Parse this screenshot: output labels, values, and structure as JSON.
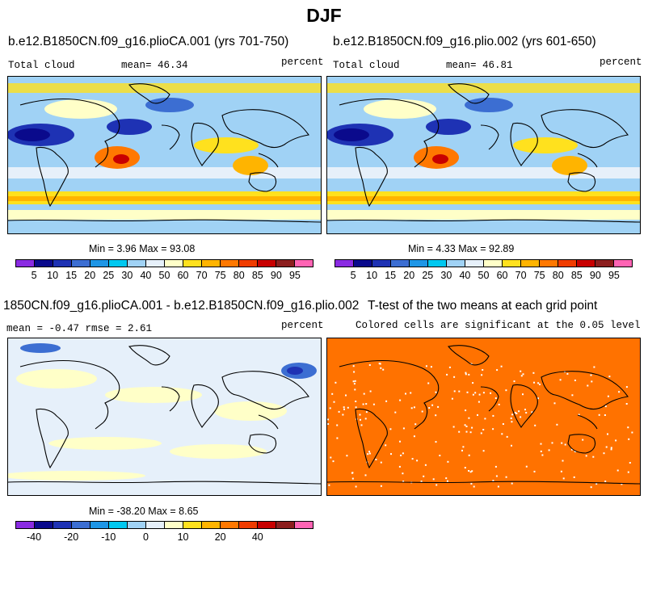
{
  "figure_title": "DJF",
  "panels": {
    "p1": {
      "title": "b.e12.B1850CN.f09_g16.plioCA.001 (yrs 701-750)",
      "left_label": "Total cloud",
      "mean_label": "mean=  46.34",
      "units": "percent",
      "minmax": "Min =   3.96 Max =  93.08"
    },
    "p2": {
      "title": "b.e12.B1850CN.f09_g16.plio.002 (yrs 601-650)",
      "left_label": "Total cloud",
      "mean_label": "mean=  46.81",
      "units": "percent",
      "minmax": "Min =   4.33 Max =  92.89"
    },
    "p3": {
      "title": "1850CN.f09_g16.plioCA.001 - b.e12.B1850CN.f09_g16.plio.002",
      "left_label": "mean = -0.47    rmse =   2.61",
      "units": "percent",
      "minmax": "Min = -38.20 Max =   8.65"
    },
    "p4": {
      "title": "T-test of the two means at each grid point",
      "subtitle": "Colored cells are significant at the 0.05 level"
    }
  },
  "colorbars": {
    "abs": {
      "colors": [
        "#8a2be2",
        "#0a0a8c",
        "#1e32b4",
        "#3c6ed2",
        "#1e96e6",
        "#00c8f0",
        "#a0d2f5",
        "#e6f0fa",
        "#ffffc8",
        "#ffe11e",
        "#ffb400",
        "#ff7800",
        "#f03c00",
        "#c80000",
        "#8c1e1e",
        "#ff64b4"
      ],
      "ticks": [
        "5",
        "10",
        "15",
        "20",
        "25",
        "30",
        "40",
        "50",
        "60",
        "70",
        "75",
        "80",
        "85",
        "90",
        "95"
      ]
    },
    "diff": {
      "colors": [
        "#8a2be2",
        "#0a0a8c",
        "#1e32b4",
        "#3c6ed2",
        "#1e96e6",
        "#00c8f0",
        "#a0d2f5",
        "#e6f0fa",
        "#ffffc8",
        "#ffe11e",
        "#ffb400",
        "#ff7800",
        "#f03c00",
        "#c80000",
        "#8c1e1e",
        "#ff64b4"
      ],
      "ticks": [
        "-40",
        "-20",
        "-10",
        "0",
        "10",
        "20",
        "40"
      ]
    }
  },
  "legend_colors": {
    "ttest_fill": "#ff7200"
  }
}
